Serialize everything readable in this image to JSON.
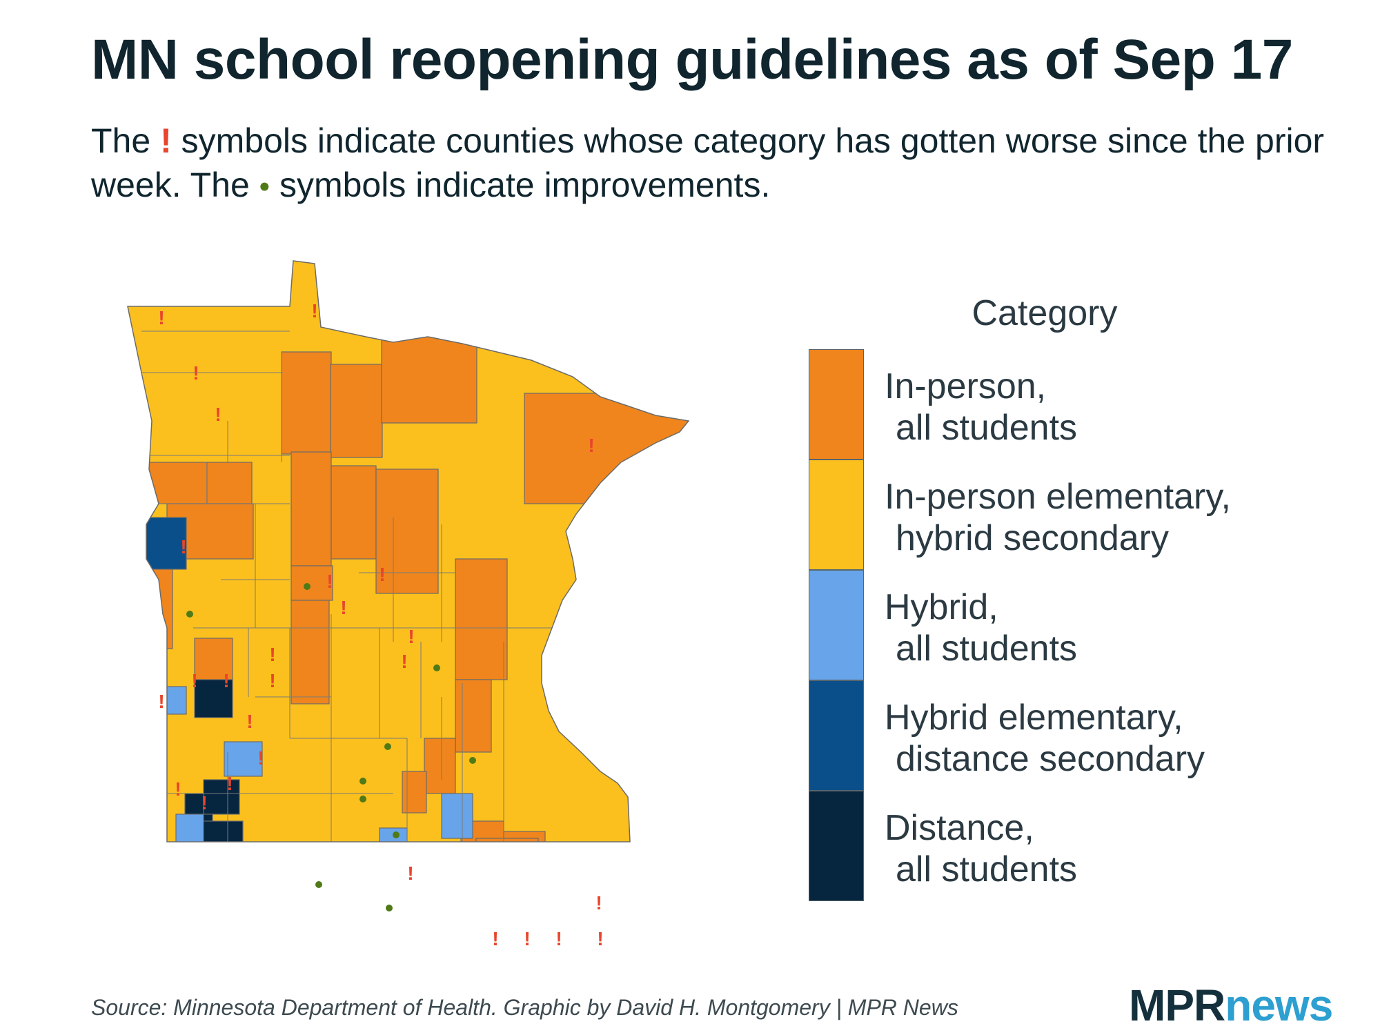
{
  "title": "MN school reopening guidelines as of Sep 17",
  "subtitle": {
    "part1": "The ",
    "worse_symbol": "!",
    "part2": " symbols indicate counties whose category has gotten worse since the prior week. The ",
    "improve_symbol": "•",
    "part3": " symbols indicate improvements."
  },
  "legend": {
    "title": "Category",
    "items": [
      {
        "line1": "In-person,",
        "line2": "all students",
        "color": "#ef851c"
      },
      {
        "line1": "In-person elementary,",
        "line2": "hybrid secondary",
        "color": "#fbc01e"
      },
      {
        "line1": "Hybrid,",
        "line2": "all students",
        "color": "#67a4ea"
      },
      {
        "line1": "Hybrid elementary,",
        "line2": "distance secondary",
        "color": "#0b4f8a"
      },
      {
        "line1": "Distance,",
        "line2": "all students",
        "color": "#06253f"
      }
    ]
  },
  "source": "Source: Minnesota Department of Health. Graphic by David H. Montgomery | MPR News",
  "logo": {
    "mpr": "MPR",
    "news": "news"
  }
}
